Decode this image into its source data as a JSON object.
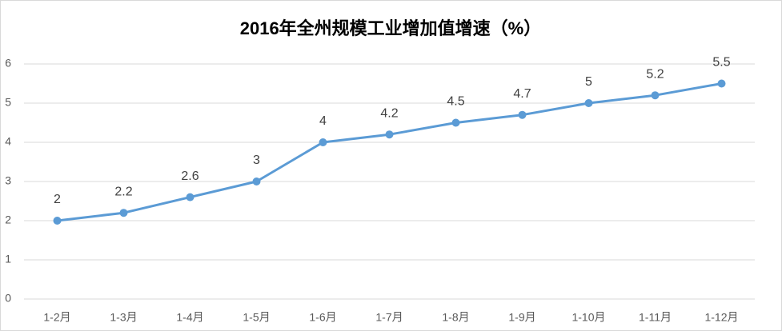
{
  "chart_data": {
    "type": "line",
    "title": "2016年全州规模工业增加值增速（%）",
    "categories": [
      "1-2月",
      "1-3月",
      "1-4月",
      "1-5月",
      "1-6月",
      "1-7月",
      "1-8月",
      "1-9月",
      "1-10月",
      "1-11月",
      "1-12月"
    ],
    "values": [
      2,
      2.2,
      2.6,
      3,
      4,
      4.2,
      4.5,
      4.7,
      5,
      5.2,
      5.5
    ],
    "color": "#5b9bd5",
    "ylim": [
      0,
      6
    ],
    "yticks": [
      0,
      1,
      2,
      3,
      4,
      5,
      6
    ],
    "grid": true
  }
}
